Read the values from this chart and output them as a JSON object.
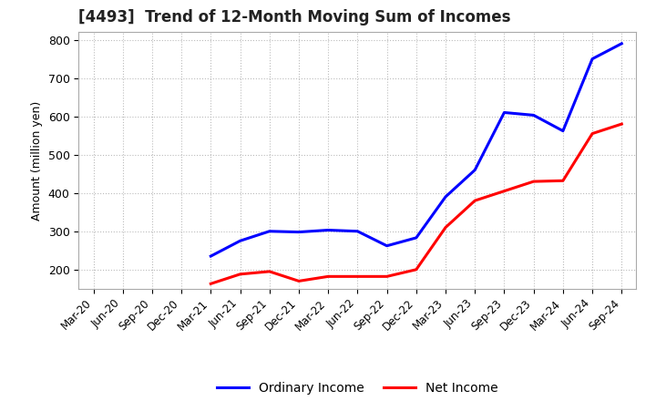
{
  "title": "[4493]  Trend of 12-Month Moving Sum of Incomes",
  "ylabel": "Amount (million yen)",
  "background_color": "#ffffff",
  "grid_color": "#bbbbbb",
  "x_labels": [
    "Mar-20",
    "Jun-20",
    "Sep-20",
    "Dec-20",
    "Mar-21",
    "Jun-21",
    "Sep-21",
    "Dec-21",
    "Mar-22",
    "Jun-22",
    "Sep-22",
    "Dec-22",
    "Mar-23",
    "Jun-23",
    "Sep-23",
    "Dec-23",
    "Mar-24",
    "Jun-24",
    "Sep-24"
  ],
  "ordinary_income": [
    null,
    null,
    null,
    null,
    235,
    275,
    300,
    298,
    303,
    300,
    262,
    283,
    390,
    460,
    610,
    603,
    562,
    750,
    790
  ],
  "net_income": [
    null,
    null,
    null,
    null,
    163,
    188,
    195,
    170,
    182,
    182,
    182,
    200,
    310,
    380,
    405,
    430,
    432,
    555,
    580
  ],
  "ylim": [
    150,
    820
  ],
  "yticks": [
    200,
    300,
    400,
    500,
    600,
    700,
    800
  ],
  "ordinary_color": "#0000ff",
  "net_color": "#ff0000",
  "line_width": 2.2,
  "legend_ordinary": "Ordinary Income",
  "legend_net": "Net Income"
}
